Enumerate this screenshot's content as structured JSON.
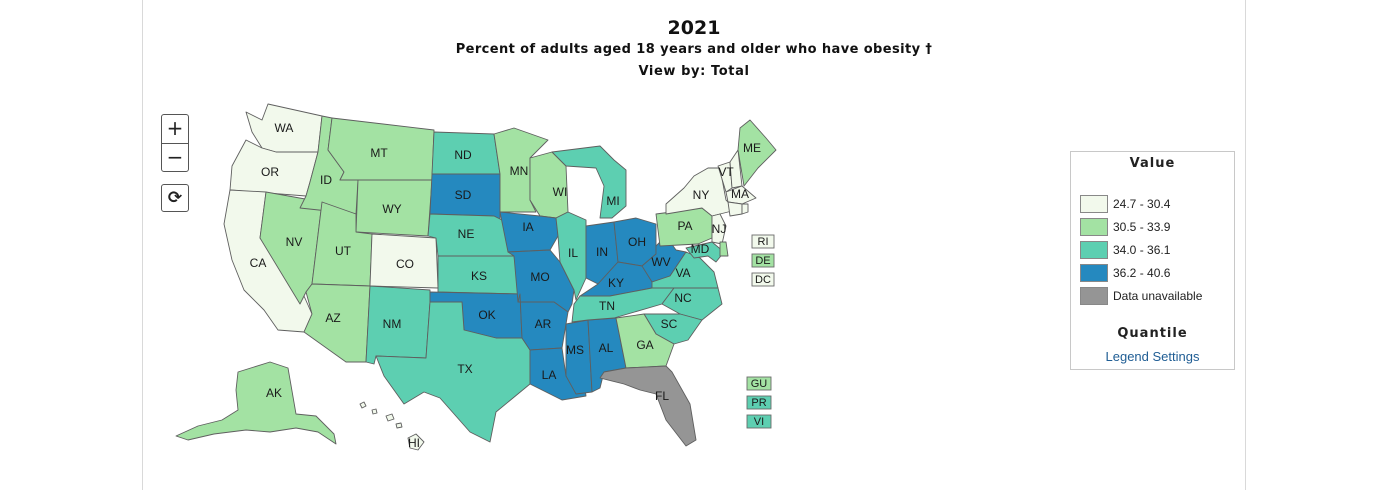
{
  "title": {
    "year": "2021",
    "subtitle": "Percent of adults aged 18 years and older who have obesity †",
    "view_by": "View by: Total"
  },
  "controls": {
    "zoom_in": "+",
    "zoom_out": "−",
    "reset": "⟳"
  },
  "legend": {
    "title": "Value",
    "classes": [
      {
        "label": "24.7 - 30.4",
        "color": "#f2f9ec"
      },
      {
        "label": "30.5 - 33.9",
        "color": "#a3e2a3"
      },
      {
        "label": "34.0 - 36.1",
        "color": "#5dcfb1"
      },
      {
        "label": "36.2 - 40.6",
        "color": "#2589bf"
      },
      {
        "label": "Data unavailable",
        "color": "#959595"
      }
    ],
    "classification": "Quantile",
    "settings_link": "Legend Settings"
  },
  "states": {
    "WA": 0,
    "OR": 0,
    "CA": 0,
    "CO": 0,
    "NY": 0,
    "VT": 0,
    "MA": 0,
    "NJ": 0,
    "NH": 0,
    "CT": 0,
    "RI": 0,
    "DC": 0,
    "HI": 0,
    "ID": 1,
    "MT": 1,
    "NV": 1,
    "UT": 1,
    "WY": 1,
    "AZ": 1,
    "MN": 1,
    "WI": 1,
    "PA": 1,
    "GA": 1,
    "ME": 1,
    "DE": 1,
    "AK": 1,
    "GU": 1,
    "ND": 2,
    "NE": 2,
    "KS": 2,
    "NM": 2,
    "TX": 2,
    "IL": 2,
    "MI": 2,
    "TN": 2,
    "VA": 2,
    "NC": 2,
    "SC": 2,
    "MD": 2,
    "PR": 2,
    "VI": 2,
    "SD": 3,
    "IA": 3,
    "MO": 3,
    "OK": 3,
    "AR": 3,
    "LA": 3,
    "MS": 3,
    "AL": 3,
    "IN": 3,
    "OH": 3,
    "KY": 3,
    "WV": 3,
    "FL": 4
  }
}
